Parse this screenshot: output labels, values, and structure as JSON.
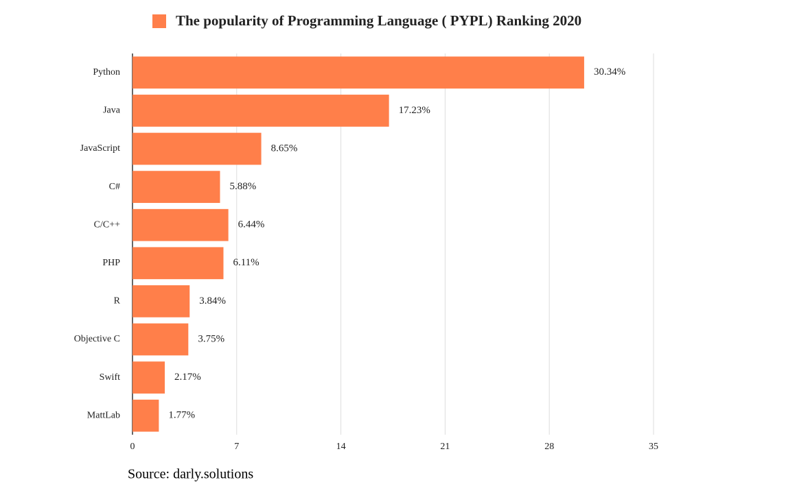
{
  "chart_data": {
    "type": "bar",
    "orientation": "horizontal",
    "title": "The popularity of Programming Language ( PYPL) Ranking 2020",
    "categories": [
      "Python",
      "Java",
      "JavaScript",
      "C#",
      "C/C++",
      "PHP",
      "R",
      "Objective C",
      "Swift",
      "MattLab"
    ],
    "values": [
      30.34,
      17.23,
      8.65,
      5.88,
      6.44,
      6.11,
      3.84,
      3.75,
      2.17,
      1.77
    ],
    "value_labels": [
      "30.34%",
      "17.23%",
      "8.65%",
      "5.88%",
      "6.44%",
      "6.11%",
      "3.84%",
      "3.75%",
      "2.17%",
      "1.77%"
    ],
    "color": "#ff7f4a",
    "xlim": [
      0,
      35
    ],
    "xticks": [
      0,
      7,
      14,
      21,
      28,
      35
    ],
    "grid": true,
    "source": "Source: darly.solutions"
  }
}
